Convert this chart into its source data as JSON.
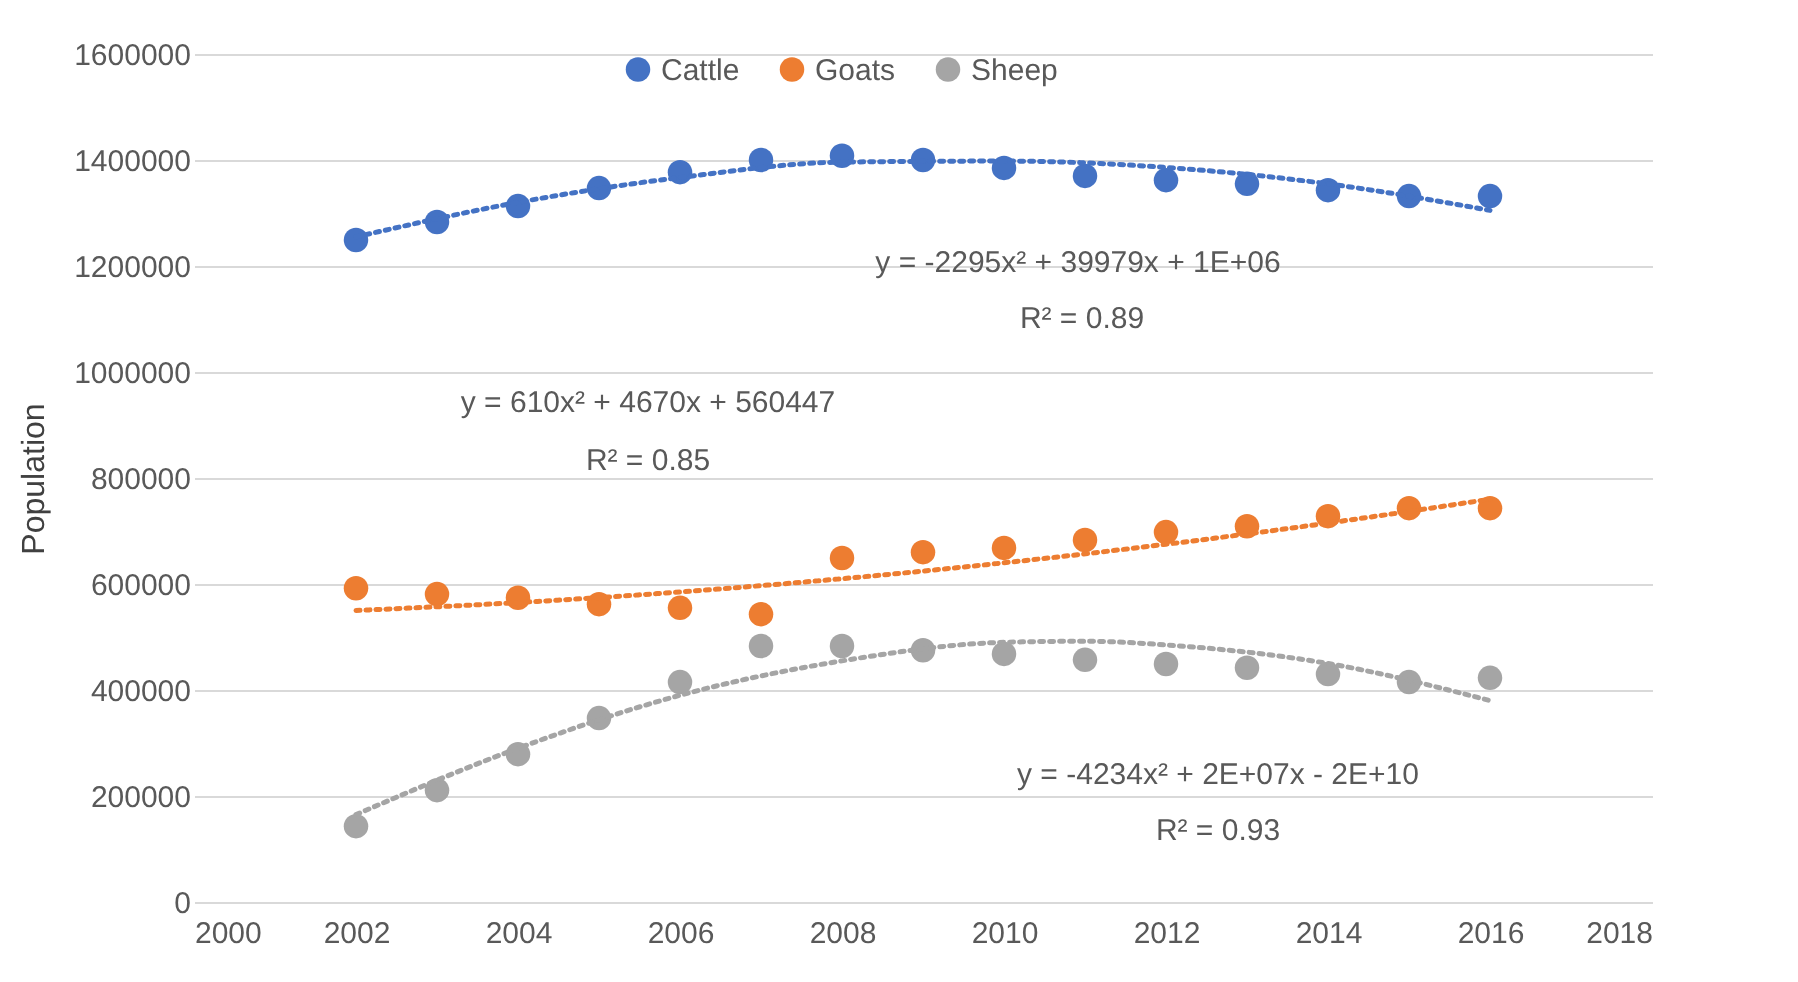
{
  "chart_data": {
    "type": "scatter",
    "ylabel": "Population",
    "x": [
      2002,
      2003,
      2004,
      2005,
      2006,
      2007,
      2008,
      2009,
      2010,
      2011,
      2012,
      2013,
      2014,
      2015,
      2016
    ],
    "series": [
      {
        "name": "Cattle",
        "color": "#4472c4",
        "marker": "circle",
        "values": [
          1249000,
          1283000,
          1313000,
          1347000,
          1377000,
          1400000,
          1408000,
          1400000,
          1385000,
          1370000,
          1362000,
          1355000,
          1343000,
          1332000,
          1332000
        ]
      },
      {
        "name": "Goats",
        "color": "#ed7d31",
        "marker": "circle",
        "values": [
          592000,
          581000,
          574000,
          562000,
          555000,
          543000,
          649000,
          660000,
          668000,
          683000,
          698000,
          709000,
          728000,
          743000,
          743000
        ]
      },
      {
        "name": "Sheep",
        "color": "#a5a5a5",
        "marker": "circle",
        "values": [
          143000,
          211000,
          279000,
          347000,
          415000,
          483000,
          483000,
          475000,
          468000,
          457000,
          449000,
          442000,
          430000,
          415000,
          423000
        ]
      },
      {
        "type": "line",
        "color": "#4472c4",
        "line_style": "dotted",
        "marker": "none",
        "x": [
          2002,
          2004,
          2006,
          2008,
          2010,
          2012,
          2014,
          2016
        ],
        "values": [
          1255000,
          1320000,
          1367000,
          1396000,
          1398000,
          1386000,
          1355000,
          1305000
        ]
      },
      {
        "type": "line",
        "color": "#ed7d31",
        "line_style": "dotted",
        "marker": "none",
        "x": [
          2002,
          2004,
          2006,
          2008,
          2010,
          2012,
          2014,
          2016
        ],
        "values": [
          550000,
          565000,
          585000,
          610000,
          640000,
          675000,
          715000,
          760000
        ]
      },
      {
        "type": "line",
        "color": "#a5a5a5",
        "line_style": "dotted",
        "marker": "none",
        "x": [
          2002,
          2004,
          2006,
          2008,
          2010,
          2011,
          2012,
          2014,
          2016
        ],
        "values": [
          165000,
          290000,
          390000,
          455000,
          490000,
          492000,
          485000,
          450000,
          380000
        ]
      }
    ],
    "xlim": [
      2000,
      2018
    ],
    "xticks": [
      2000,
      2002,
      2004,
      2006,
      2008,
      2010,
      2012,
      2014,
      2016,
      2018
    ],
    "ylim": [
      0,
      1600000
    ],
    "yticks": [
      0,
      200000,
      400000,
      600000,
      800000,
      1000000,
      1200000,
      1400000,
      1600000
    ],
    "grid": "y",
    "legend": "top",
    "annotations": [
      "y = -2295x² + 39979x + 1E+06",
      "R² = 0.89",
      "y = 610x² + 4670x + 560447",
      "R² = 0.85",
      "y = -4234x² + 2E+07x - 2E+10",
      "R² = 0.93"
    ]
  }
}
